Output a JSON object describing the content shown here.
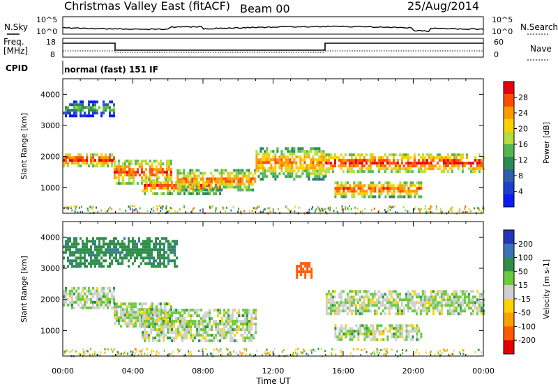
{
  "header": {
    "title": "Christmas Valley East (fitACF)",
    "beam": "Beam 00",
    "date": "25/Aug/2014"
  },
  "strip": {
    "nsky_label": "N.Sky",
    "nsky_scale_left": [
      "10^5",
      "10^0"
    ],
    "nsky_scale_right": [
      "10^5",
      "10^0"
    ],
    "nsearch_label": "N.Search",
    "freq_label": "Freq.",
    "freq_unit": "[MHz]",
    "freq_ticks": [
      "18",
      "8"
    ],
    "nave_ticks": [
      "60",
      "0"
    ],
    "nave_label": "Nave",
    "cpid_label": "CPID",
    "cpid_text": "normal (fast) 151 IF"
  },
  "axes": {
    "ylabel": "Slant Range [km]",
    "yticks": [
      "4000",
      "3000",
      "2000",
      "1000"
    ],
    "xticks": [
      "00:00",
      "04:00",
      "08:00",
      "12:00",
      "16:00",
      "20:00",
      "00:00"
    ],
    "xlabel": "Time UT"
  },
  "colorbars": {
    "power": {
      "label": "Power [dB]",
      "ticks": [
        "28",
        "24",
        "20",
        "16",
        "12",
        "8",
        "4"
      ],
      "colors": [
        "#e8000b",
        "#ff4d00",
        "#ff9a00",
        "#ffd000",
        "#b5dc3a",
        "#56b74f",
        "#2c8a57",
        "#2e5ea8",
        "#1d3fcf",
        "#0a1cf5"
      ]
    },
    "velocity": {
      "label": "Velocity [m s-1]",
      "ticks": [
        "200",
        "100",
        "50",
        "15",
        "-15",
        "-50",
        "-100",
        "-200"
      ],
      "colors": [
        "#2335b5",
        "#3a73b8",
        "#2f8f4a",
        "#6ac93f",
        "#cfcfcf",
        "#ffd200",
        "#ffa000",
        "#ff5a00",
        "#e30000"
      ]
    }
  },
  "chart_data": [
    {
      "type": "heatmap",
      "panel": "power",
      "x_range_hours": [
        0,
        24
      ],
      "y_range_km": [
        180,
        4500
      ],
      "colorbar_label": "Power [dB]",
      "echo_regions": [
        {
          "t_start": 0.0,
          "t_end": 2.9,
          "range_km": [
            1700,
            2100
          ],
          "power_db": 22
        },
        {
          "t_start": 0.0,
          "t_end": 2.9,
          "range_km": [
            3300,
            3800
          ],
          "power_db": 8
        },
        {
          "t_start": 2.9,
          "t_end": 6.2,
          "range_km": [
            1100,
            1900
          ],
          "power_db": 20
        },
        {
          "t_start": 4.5,
          "t_end": 9.0,
          "range_km": [
            800,
            1300
          ],
          "power_db": 20
        },
        {
          "t_start": 6.5,
          "t_end": 11.0,
          "range_km": [
            900,
            1600
          ],
          "power_db": 18
        },
        {
          "t_start": 11.0,
          "t_end": 15.0,
          "range_km": [
            1300,
            2300
          ],
          "power_db": 18
        },
        {
          "t_start": 15.0,
          "t_end": 24.0,
          "range_km": [
            1500,
            2100
          ],
          "power_db": 22
        },
        {
          "t_start": 15.5,
          "t_end": 20.5,
          "range_km": [
            700,
            1200
          ],
          "power_db": 20
        }
      ]
    },
    {
      "type": "heatmap",
      "panel": "velocity",
      "x_range_hours": [
        0,
        24
      ],
      "y_range_km": [
        180,
        4500
      ],
      "colorbar_label": "Velocity [m s-1]",
      "echo_regions": [
        {
          "t_start": 0.0,
          "t_end": 2.9,
          "range_km": [
            1700,
            2400
          ],
          "velocity": 0
        },
        {
          "t_start": 2.9,
          "t_end": 6.2,
          "range_km": [
            1100,
            1900
          ],
          "velocity": 0
        },
        {
          "t_start": 0.0,
          "t_end": 6.5,
          "range_km": [
            3100,
            4000
          ],
          "velocity": 60
        },
        {
          "t_start": 4.5,
          "t_end": 11.0,
          "range_km": [
            700,
            1700
          ],
          "velocity": 0
        },
        {
          "t_start": 13.3,
          "t_end": 14.2,
          "range_km": [
            2700,
            3200
          ],
          "velocity": -120
        },
        {
          "t_start": 15.0,
          "t_end": 24.0,
          "range_km": [
            1500,
            2300
          ],
          "velocity": 0
        },
        {
          "t_start": 15.5,
          "t_end": 20.5,
          "range_km": [
            700,
            1200
          ],
          "velocity": 0
        }
      ]
    }
  ]
}
